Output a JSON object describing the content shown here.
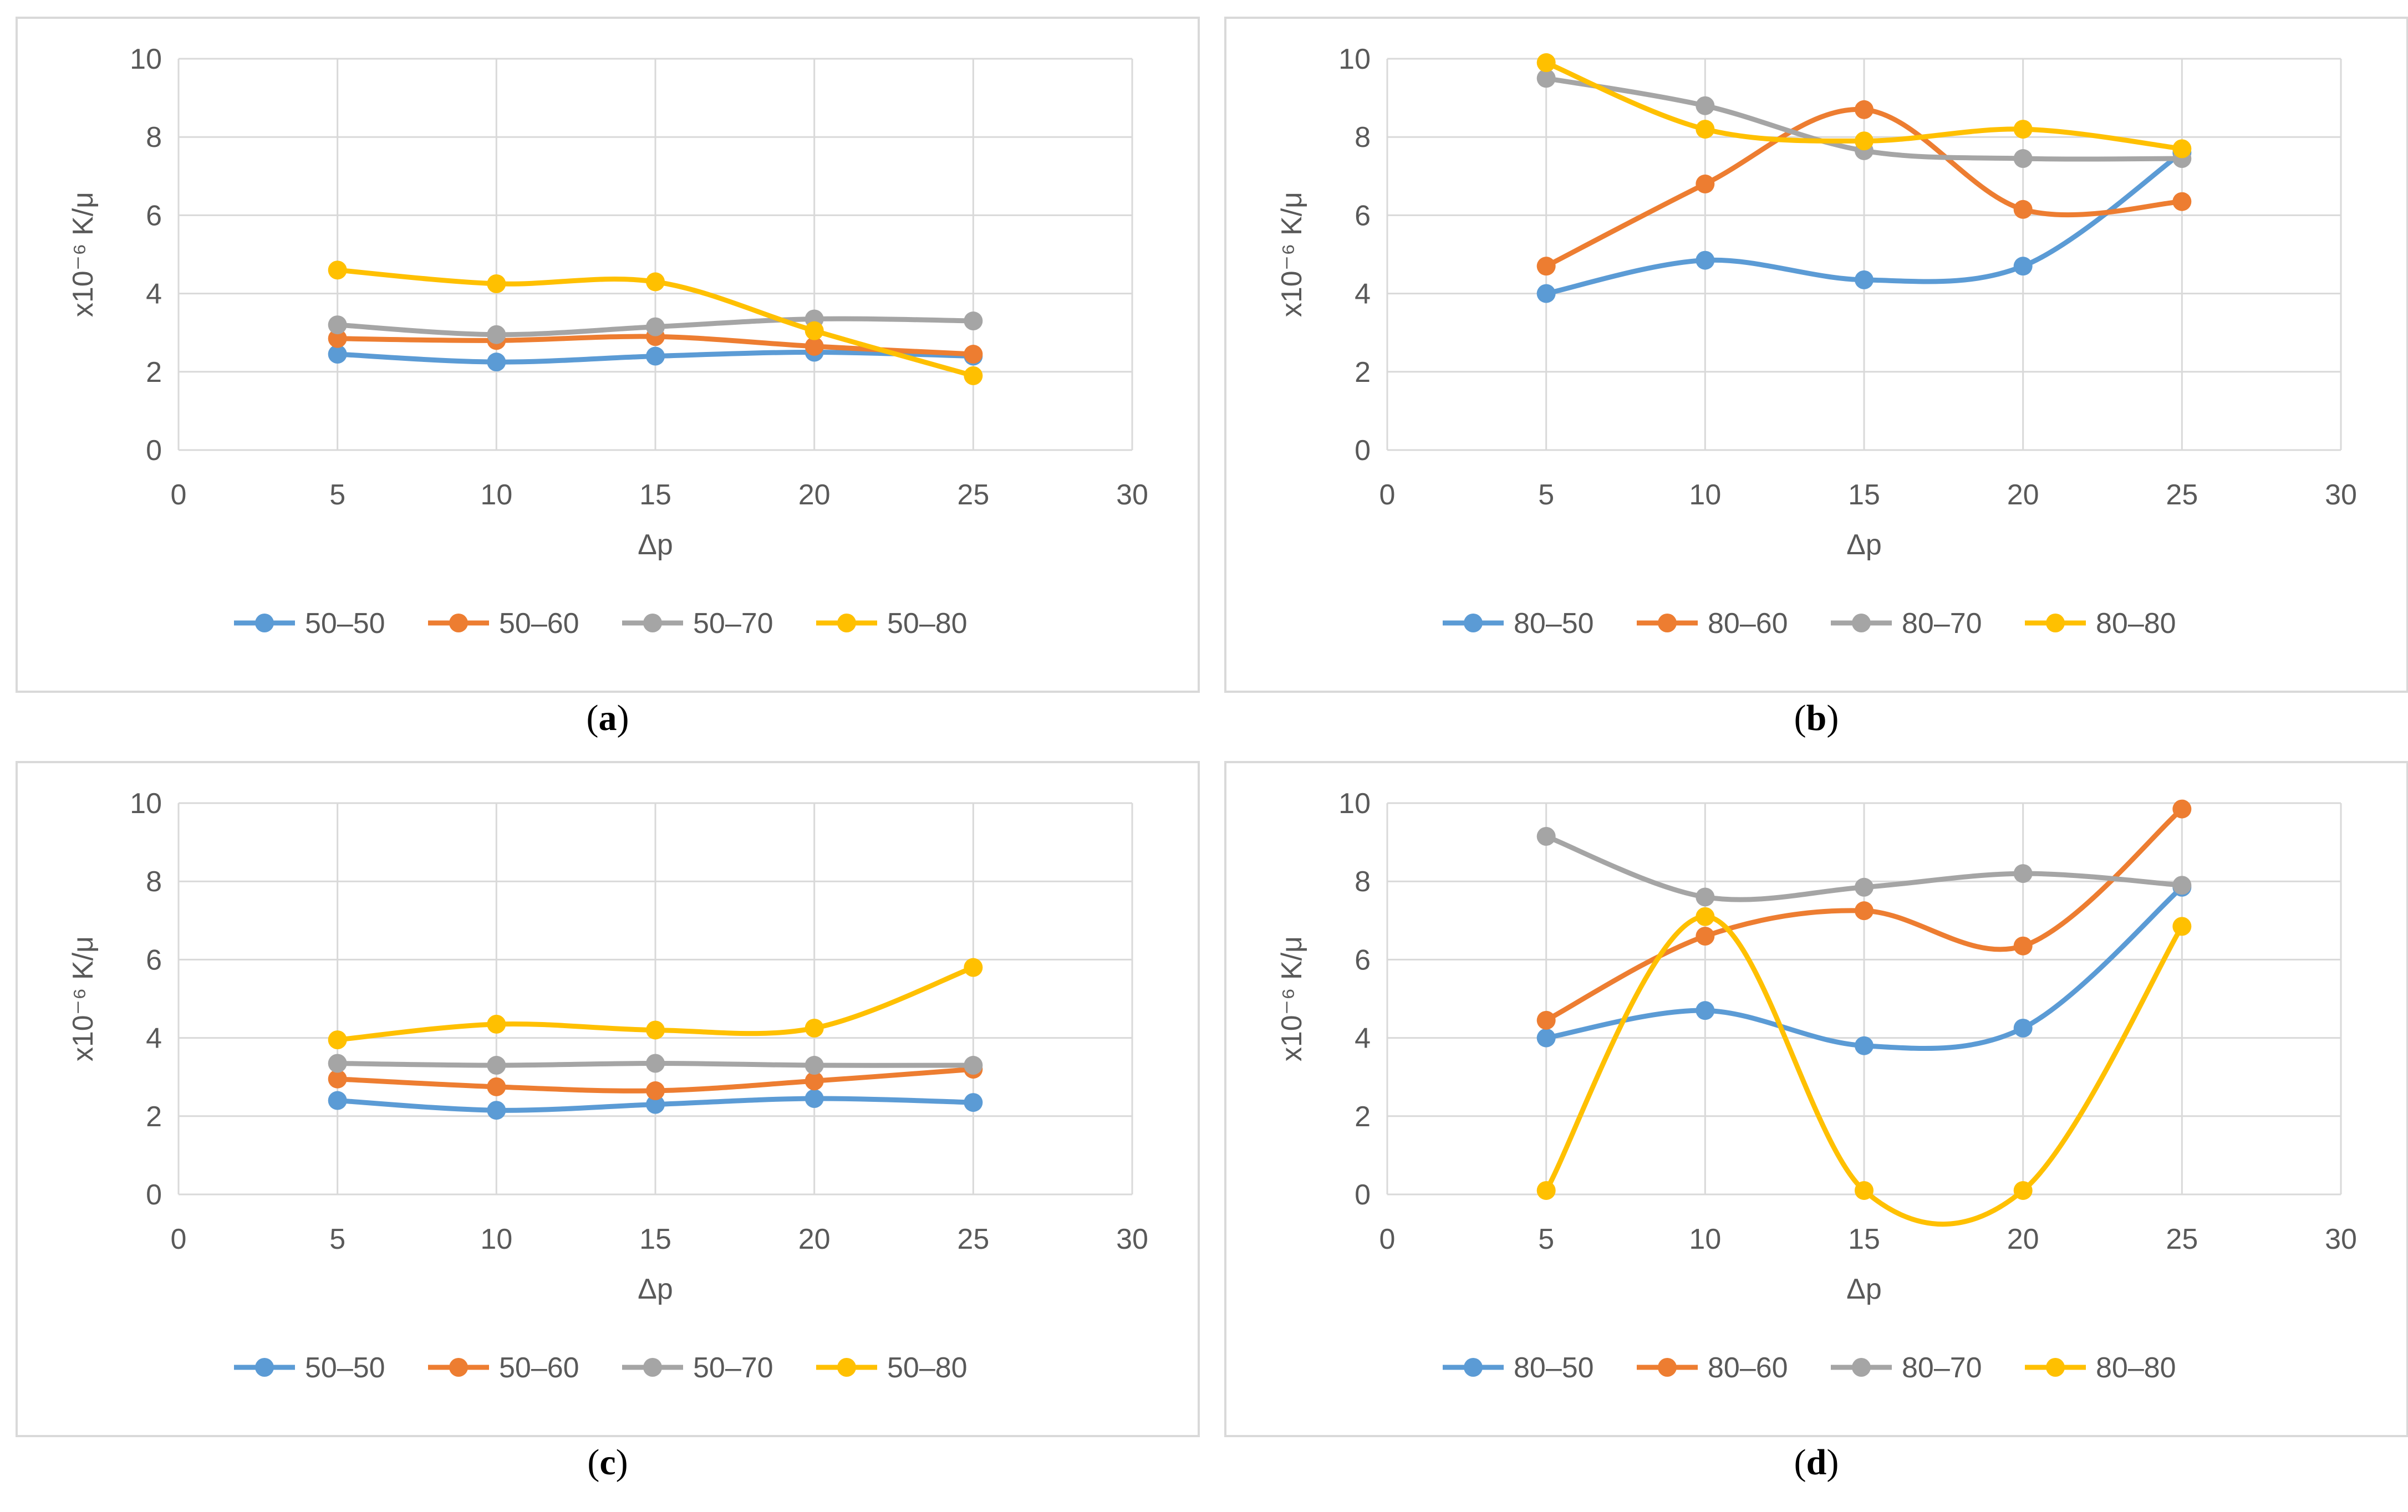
{
  "colors": {
    "s1": "#5B9BD5",
    "s2": "#ED7D31",
    "s3": "#A5A5A5",
    "s4": "#FFC000",
    "grid": "#d9d9d9",
    "text": "#595959"
  },
  "chart_data": [
    {
      "id": "a",
      "caption_letter": "a",
      "type": "line",
      "xlabel": "Δp",
      "ylabel": "x10⁻⁶ K/μ",
      "xlim": [
        0,
        30
      ],
      "ylim": [
        0,
        10
      ],
      "x_ticks": [
        "0",
        "5",
        "10",
        "15",
        "20",
        "25",
        "30"
      ],
      "y_ticks": [
        "0",
        "2",
        "4",
        "6",
        "8",
        "10"
      ],
      "x": [
        5,
        10,
        15,
        20,
        25
      ],
      "series": [
        {
          "name": "50–50",
          "values": [
            2.45,
            2.25,
            2.4,
            2.5,
            2.4
          ]
        },
        {
          "name": "50–60",
          "values": [
            2.85,
            2.8,
            2.9,
            2.65,
            2.45
          ]
        },
        {
          "name": "50–70",
          "values": [
            3.2,
            2.95,
            3.15,
            3.35,
            3.3
          ]
        },
        {
          "name": "50–80",
          "values": [
            4.6,
            4.25,
            4.3,
            3.05,
            1.9
          ]
        }
      ]
    },
    {
      "id": "b",
      "caption_letter": "b",
      "type": "line",
      "xlabel": "Δp",
      "ylabel": "x10⁻⁶ K/μ",
      "xlim": [
        0,
        30
      ],
      "ylim": [
        0,
        10
      ],
      "x_ticks": [
        "0",
        "5",
        "10",
        "15",
        "20",
        "25",
        "30"
      ],
      "y_ticks": [
        "0",
        "2",
        "4",
        "6",
        "8",
        "10"
      ],
      "x": [
        5,
        10,
        15,
        20,
        25
      ],
      "series": [
        {
          "name": "80–50",
          "values": [
            4.0,
            4.85,
            4.35,
            4.7,
            7.6
          ]
        },
        {
          "name": "80–60",
          "values": [
            4.7,
            6.8,
            8.7,
            6.15,
            6.35
          ]
        },
        {
          "name": "80–70",
          "values": [
            9.5,
            8.8,
            7.65,
            7.45,
            7.45
          ]
        },
        {
          "name": "80–80",
          "values": [
            9.9,
            8.2,
            7.9,
            8.2,
            7.7
          ]
        }
      ]
    },
    {
      "id": "c",
      "caption_letter": "c",
      "type": "line",
      "xlabel": "Δp",
      "ylabel": "x10⁻⁶ K/μ",
      "xlim": [
        0,
        30
      ],
      "ylim": [
        0,
        10
      ],
      "x_ticks": [
        "0",
        "5",
        "10",
        "15",
        "20",
        "25",
        "30"
      ],
      "y_ticks": [
        "0",
        "2",
        "4",
        "6",
        "8",
        "10"
      ],
      "x": [
        5,
        10,
        15,
        20,
        25
      ],
      "series": [
        {
          "name": "50–50",
          "values": [
            2.4,
            2.15,
            2.3,
            2.45,
            2.35
          ]
        },
        {
          "name": "50–60",
          "values": [
            2.95,
            2.75,
            2.65,
            2.9,
            3.2
          ]
        },
        {
          "name": "50–70",
          "values": [
            3.35,
            3.3,
            3.35,
            3.3,
            3.3
          ]
        },
        {
          "name": "50–80",
          "values": [
            3.95,
            4.35,
            4.2,
            4.25,
            5.8
          ]
        }
      ]
    },
    {
      "id": "d",
      "caption_letter": "d",
      "type": "line",
      "xlabel": "Δp",
      "ylabel": "x10⁻⁶ K/μ",
      "xlim": [
        0,
        30
      ],
      "ylim": [
        0,
        10
      ],
      "x_ticks": [
        "0",
        "5",
        "10",
        "15",
        "20",
        "25",
        "30"
      ],
      "y_ticks": [
        "0",
        "2",
        "4",
        "6",
        "8",
        "10"
      ],
      "x": [
        5,
        10,
        15,
        20,
        25
      ],
      "series": [
        {
          "name": "80–50",
          "values": [
            4.0,
            4.7,
            3.8,
            4.25,
            7.85
          ]
        },
        {
          "name": "80–60",
          "values": [
            4.45,
            6.6,
            7.25,
            6.35,
            9.85
          ]
        },
        {
          "name": "80–70",
          "values": [
            9.15,
            7.6,
            7.85,
            8.2,
            7.9
          ]
        },
        {
          "name": "80–80",
          "values": [
            0.1,
            7.1,
            0.1,
            0.1,
            6.85
          ]
        }
      ]
    }
  ]
}
